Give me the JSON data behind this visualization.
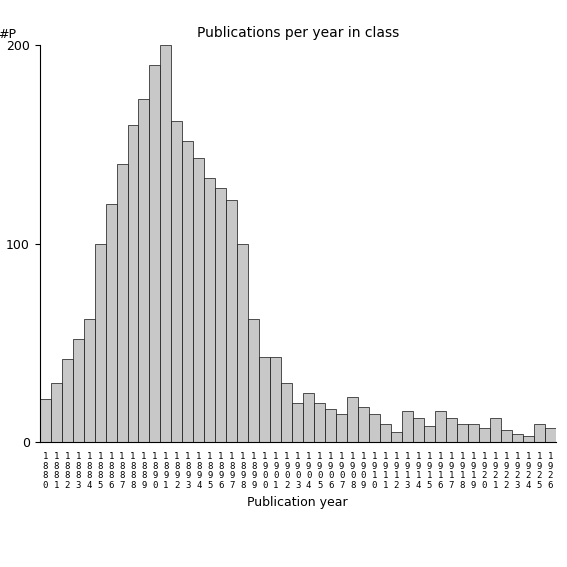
{
  "title": "Publications per year in class",
  "xlabel": "Publication year",
  "ylabel": "#P",
  "ylim": [
    0,
    200
  ],
  "yticks": [
    0,
    100,
    200
  ],
  "bar_color": "#c8c8c8",
  "bar_edgecolor": "#111111",
  "background_color": "#ffffff",
  "years": [
    1880,
    1881,
    1882,
    1883,
    1884,
    1885,
    1886,
    1887,
    1888,
    1889,
    1890,
    1891,
    1892,
    1893,
    1894,
    1895,
    1896,
    1897,
    1898,
    1899,
    1900,
    1901,
    1902,
    1903,
    1904,
    1905,
    1906,
    1907,
    1908,
    1909,
    1910,
    1911,
    1912,
    1913,
    1914,
    1915,
    1916,
    1917,
    1918,
    1919,
    1920,
    1921,
    1922,
    1923,
    1924,
    1925,
    1926
  ],
  "values": [
    22,
    30,
    42,
    52,
    62,
    100,
    120,
    140,
    160,
    173,
    190,
    200,
    162,
    152,
    143,
    133,
    128,
    122,
    100,
    62,
    43,
    43,
    30,
    20,
    25,
    20,
    17,
    14,
    23,
    18,
    14,
    9,
    5,
    16,
    12,
    8,
    16,
    12,
    9,
    9,
    7,
    12,
    6,
    4,
    3,
    9,
    7
  ]
}
